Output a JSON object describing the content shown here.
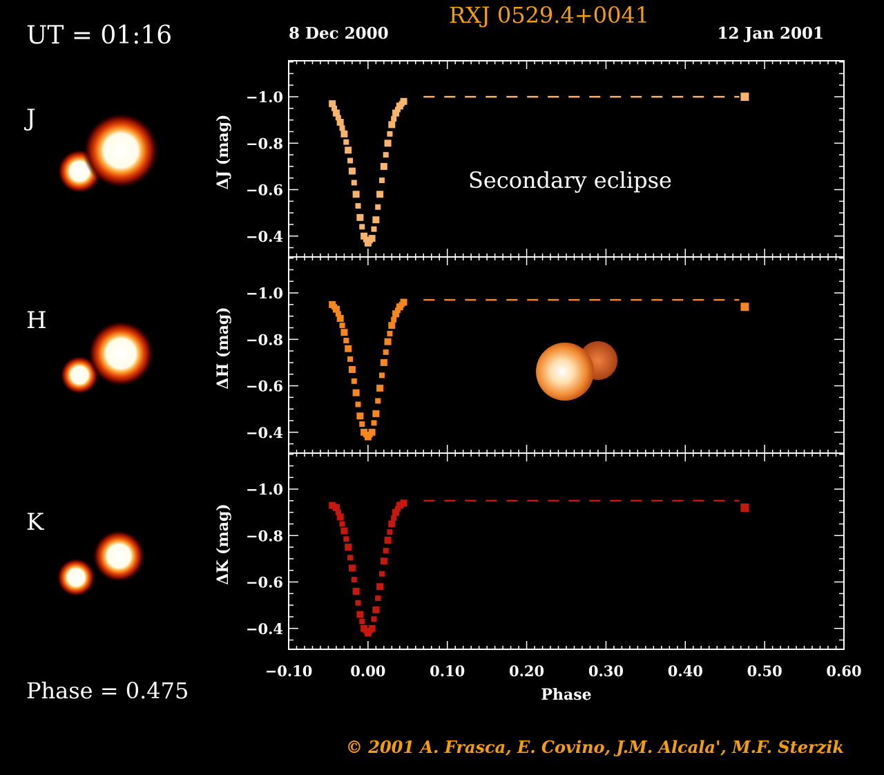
{
  "header": {
    "ut_label": "UT = 01:16",
    "start_date": "8 Dec 2000",
    "title": "RXJ 0529.4+0041",
    "end_date": "12 Jan 2001"
  },
  "phase_label": "Phase = 0.475",
  "annotation": "Secondary eclipse",
  "credit": "© 2001 A. Frasca, E. Covino, J.M. Alcala', M.F. Sterzik",
  "colors": {
    "title": "#f5a000",
    "credit": "#f5a000",
    "J": "#f9b46c",
    "H": "#f7871c",
    "K": "#c8180e"
  },
  "images": [
    {
      "band": "J",
      "icon": "binary-star-image"
    },
    {
      "band": "H",
      "icon": "binary-star-image"
    },
    {
      "band": "K",
      "icon": "binary-star-image"
    }
  ],
  "chart_data": {
    "type": "scatter",
    "xlabel": "Phase",
    "xlim": [
      -0.1,
      0.6
    ],
    "xticks": [
      "−0.10",
      "0.00",
      "0.10",
      "0.20",
      "0.30",
      "0.40",
      "0.50",
      "0.60"
    ],
    "xtick_values": [
      -0.1,
      0.0,
      0.1,
      0.2,
      0.3,
      0.4,
      0.5,
      0.6
    ],
    "ylim": [
      -1.155,
      -0.31
    ],
    "y_inverted": true,
    "yticks": [
      "−1.0",
      "−0.8",
      "−0.6",
      "−0.4"
    ],
    "ytick_values": [
      -1.0,
      -0.8,
      -0.6,
      -0.4
    ],
    "grid": false,
    "x": [
      -0.045,
      -0.04,
      -0.035,
      -0.03,
      -0.025,
      -0.02,
      -0.015,
      -0.01,
      -0.005,
      0.0,
      0.005,
      0.01,
      0.015,
      0.02,
      0.025,
      0.03,
      0.035,
      0.04,
      0.045
    ],
    "current_phase": 0.475,
    "series": [
      {
        "name": "J",
        "ylabel": "ΔJ (mag)",
        "color": "#f9b46c",
        "values": [
          -0.97,
          -0.93,
          -0.89,
          -0.84,
          -0.77,
          -0.68,
          -0.58,
          -0.48,
          -0.4,
          -0.37,
          -0.39,
          -0.47,
          -0.58,
          -0.7,
          -0.8,
          -0.88,
          -0.93,
          -0.96,
          -0.98
        ],
        "out_of_eclipse": -1.0,
        "current_value": -1.0
      },
      {
        "name": "H",
        "ylabel": "ΔH (mag)",
        "color": "#f7871c",
        "values": [
          -0.95,
          -0.93,
          -0.89,
          -0.83,
          -0.76,
          -0.67,
          -0.57,
          -0.47,
          -0.4,
          -0.38,
          -0.4,
          -0.48,
          -0.59,
          -0.7,
          -0.79,
          -0.86,
          -0.91,
          -0.94,
          -0.96
        ],
        "out_of_eclipse": -0.97,
        "current_value": -0.94
      },
      {
        "name": "K",
        "ylabel": "ΔK (mag)",
        "color": "#c8180e",
        "values": [
          -0.93,
          -0.92,
          -0.88,
          -0.82,
          -0.75,
          -0.66,
          -0.56,
          -0.46,
          -0.4,
          -0.38,
          -0.4,
          -0.48,
          -0.58,
          -0.69,
          -0.78,
          -0.85,
          -0.9,
          -0.93,
          -0.94
        ],
        "out_of_eclipse": -0.95,
        "current_value": -0.92
      }
    ]
  }
}
